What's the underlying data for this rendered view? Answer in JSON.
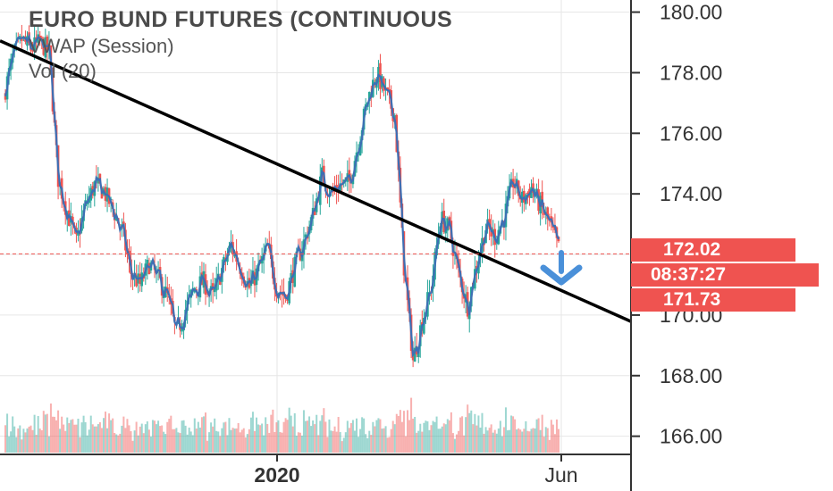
{
  "legend": {
    "title": "EURO BUND FUTURES (CONTINUOUS",
    "vwap": "VWAP (Session)",
    "vol": "Vol (20)"
  },
  "price_tags": {
    "last": "172.02",
    "countdown": "08:37:27",
    "prev": "171.73"
  },
  "colors": {
    "up": "#26a69a",
    "down": "#ef5350",
    "vwap": "#3d6fb4",
    "trendline": "#000000",
    "arrow": "#4a90d9",
    "tag": "#ef5350"
  },
  "chart_data": {
    "type": "candlestick",
    "title": "EURO BUND FUTURES (CONTINUOUS",
    "indicators": [
      "VWAP (Session)",
      "Vol (20)"
    ],
    "y_ticks": [
      "180.00",
      "178.00",
      "176.00",
      "174.00",
      "172.00",
      "170.00",
      "168.00",
      "166.00"
    ],
    "x_ticks": [
      "2020",
      "Jun"
    ],
    "ylim": [
      165.4,
      180.4
    ],
    "last_price": 172.02,
    "approx_closes": [
      177.2,
      178.5,
      179.1,
      178.8,
      179.0,
      178.7,
      174.5,
      173.4,
      172.4,
      173.6,
      174.3,
      174.1,
      173.5,
      172.8,
      171.4,
      171.0,
      171.7,
      171.2,
      170.6,
      169.4,
      170.2,
      170.9,
      171.1,
      170.6,
      171.5,
      172.3,
      171.6,
      170.9,
      171.5,
      172.2,
      170.9,
      170.6,
      171.6,
      172.4,
      173.3,
      174.6,
      174.0,
      174.3,
      174.4,
      175.7,
      177.1,
      178.0,
      177.3,
      176.6,
      171.6,
      168.5,
      169.8,
      170.9,
      173.2,
      172.8,
      171.4,
      170.3,
      171.7,
      172.9,
      172.6,
      173.2,
      174.4,
      173.8,
      174.2,
      173.6,
      173.0,
      172.2
    ],
    "trendline": [
      [
        0,
        179.0
      ],
      [
        61,
        170.85
      ]
    ]
  }
}
